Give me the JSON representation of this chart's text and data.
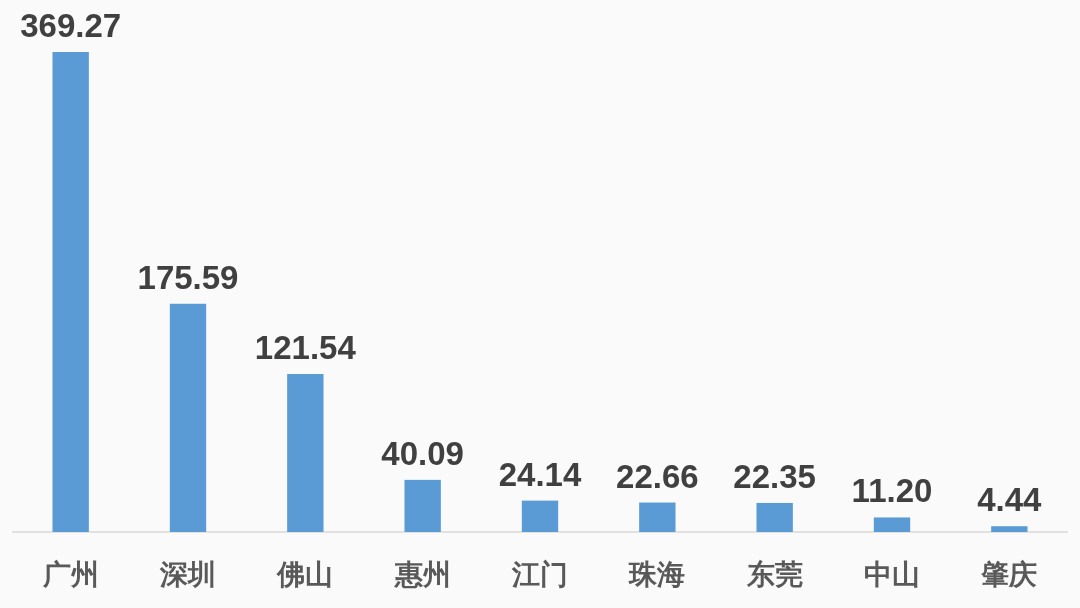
{
  "chart_data": {
    "type": "bar",
    "categories": [
      "广州",
      "深圳",
      "佛山",
      "惠州",
      "江门",
      "珠海",
      "东莞",
      "中山",
      "肇庆"
    ],
    "values": [
      369.27,
      175.59,
      121.54,
      40.09,
      24.14,
      22.66,
      22.35,
      11.2,
      4.44
    ],
    "value_labels": [
      "369.27",
      "175.59",
      "121.54",
      "40.09",
      "24.14",
      "22.66",
      "22.35",
      "11.20",
      "4.44"
    ],
    "color": "#5b9bd5"
  }
}
